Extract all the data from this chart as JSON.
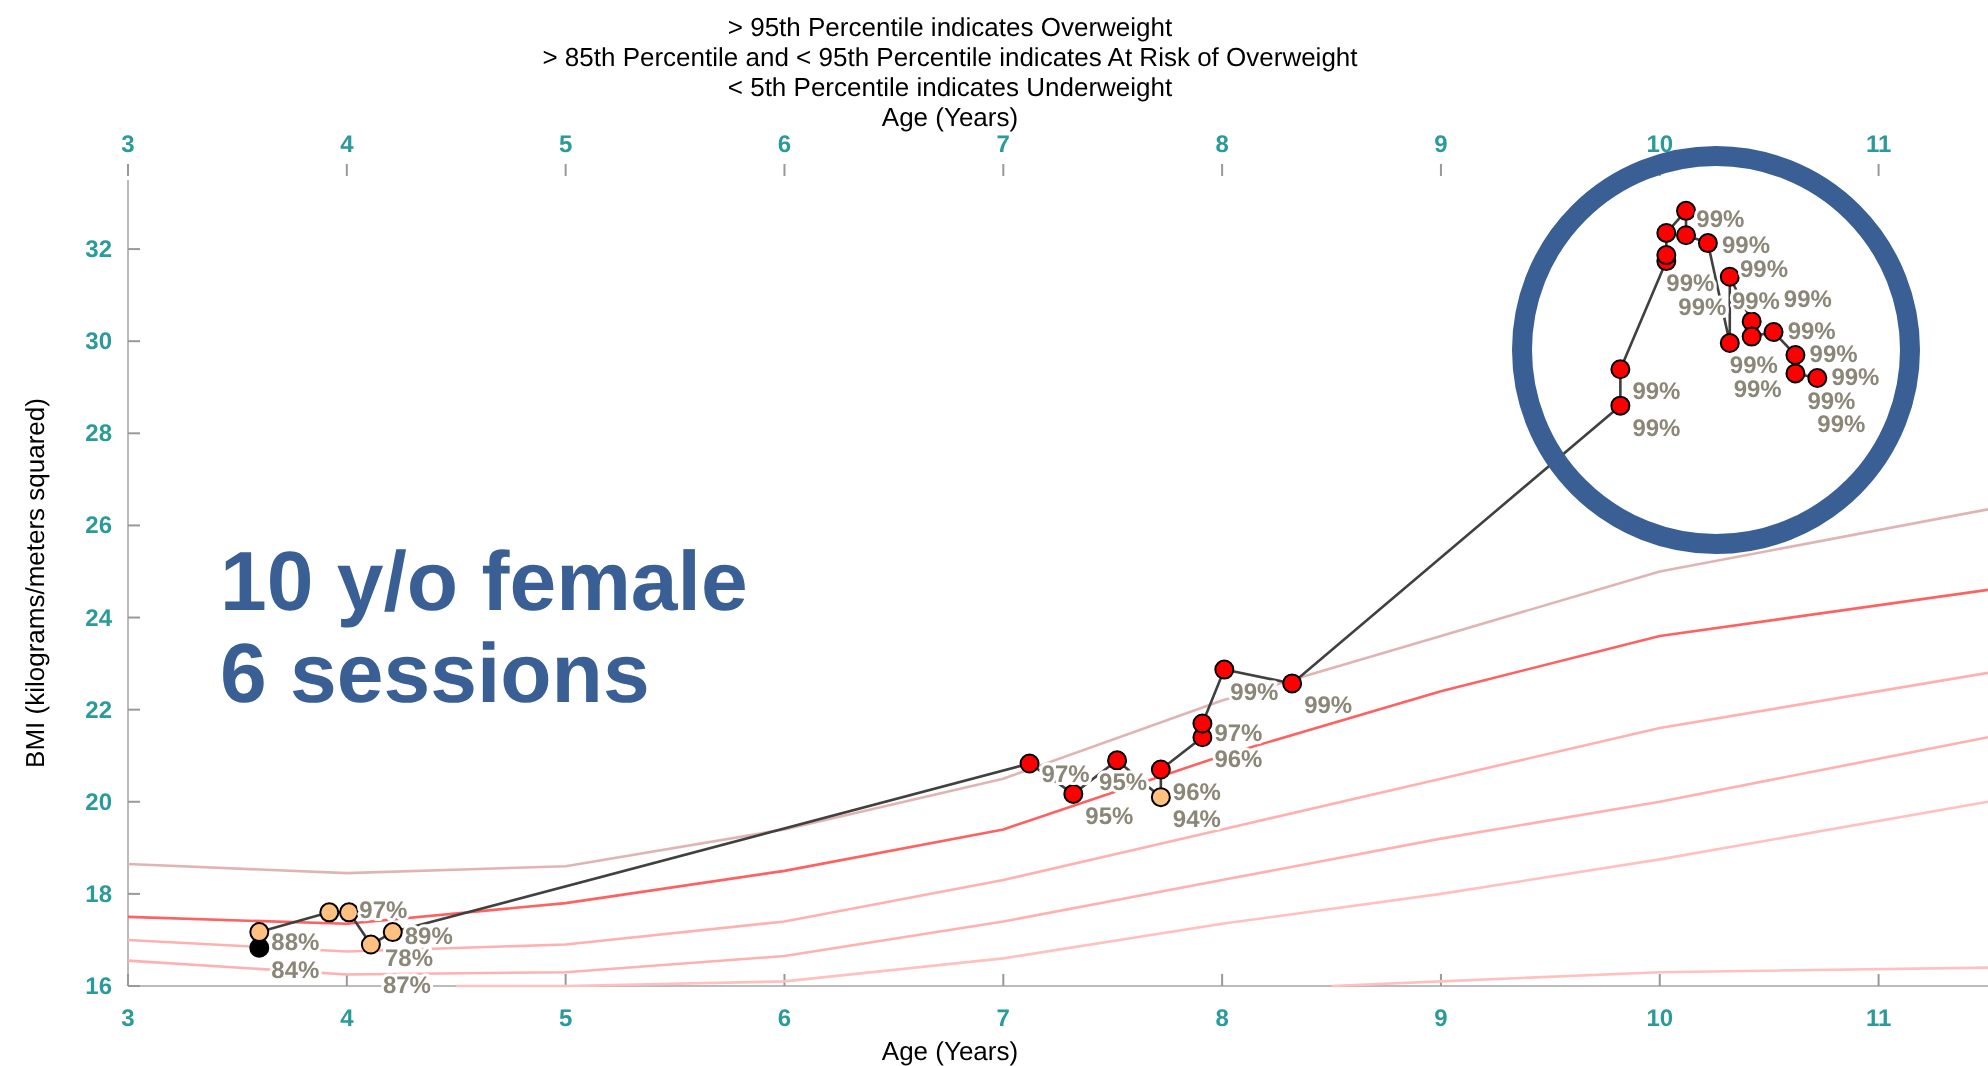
{
  "chart_data": {
    "type": "line",
    "title": "> 95th Percentile indicates Overweight\n> 85th Percentile and < 95th Percentile indicates At Risk of Overweight\n< 5th Percentile indicates Underweight",
    "xlabel": "Age (Years)",
    "x2label": "Age (Years)",
    "ylabel": "BMI (kilograms/meters squared)",
    "annotations": [
      "10 y/o female\n6 sessions",
      {
        "text": "84%",
        "x": 3.6,
        "y": 16.83
      },
      {
        "text": "88%",
        "x": 3.6,
        "y": 17.17
      },
      {
        "text": "97%",
        "x": 3.92,
        "y": 17.6
      },
      {
        "text": "78%",
        "x": 4.01,
        "y": 17.6
      },
      {
        "text": "87%",
        "x": 4.11,
        "y": 16.9
      },
      {
        "text": "89%",
        "x": 4.21,
        "y": 17.17
      },
      {
        "text": "97%",
        "x": 7.12,
        "y": 20.83
      },
      {
        "text": "95%",
        "x": 7.32,
        "y": 20.17
      },
      {
        "text": "95%",
        "x": 7.52,
        "y": 20.9
      },
      {
        "text": "94%",
        "x": 7.72,
        "y": 20.1
      },
      {
        "text": "96%",
        "x": 7.72,
        "y": 20.7
      },
      {
        "text": "96%",
        "x": 7.91,
        "y": 21.4
      },
      {
        "text": "97%",
        "x": 7.91,
        "y": 21.7
      },
      {
        "text": "99%",
        "x": 8.01,
        "y": 22.87
      },
      {
        "text": "99%",
        "x": 8.32,
        "y": 22.57
      },
      {
        "text": "99%",
        "x": 9.82,
        "y": 28.6
      },
      {
        "text": "99%",
        "x": 9.82,
        "y": 29.39
      },
      {
        "text": "99%",
        "x": 10.03,
        "y": 31.74
      },
      {
        "text": "99%",
        "x": 10.03,
        "y": 31.87
      },
      {
        "text": "99%",
        "x": 10.03,
        "y": 32.35
      },
      {
        "text": "99%",
        "x": 10.12,
        "y": 32.83
      },
      {
        "text": "99%",
        "x": 10.12,
        "y": 32.3
      },
      {
        "text": "99%",
        "x": 10.22,
        "y": 32.13
      },
      {
        "text": "99%",
        "x": 10.32,
        "y": 29.96
      },
      {
        "text": "99%",
        "x": 10.32,
        "y": 31.4
      },
      {
        "text": "99%",
        "x": 10.42,
        "y": 30.43
      },
      {
        "text": "99%",
        "x": 10.42,
        "y": 30.1
      },
      {
        "text": "99%",
        "x": 10.52,
        "y": 30.2
      },
      {
        "text": "99%",
        "x": 10.62,
        "y": 29.7
      },
      {
        "text": "99%",
        "x": 10.62,
        "y": 29.3
      },
      {
        "text": "99%",
        "x": 10.72,
        "y": 29.2
      }
    ],
    "xlim": [
      3,
      11.5
    ],
    "xticks": [
      3,
      4,
      5,
      6,
      7,
      8,
      9,
      10,
      11
    ],
    "x2lim": [
      3,
      11.5
    ],
    "x2ticks": [
      3,
      4,
      5,
      6,
      7,
      8,
      9,
      10,
      11
    ],
    "ylim": [
      16,
      33.5
    ],
    "yticks": [
      16,
      18,
      20,
      22,
      24,
      26,
      28,
      30,
      32
    ],
    "grid": false,
    "marker": "circle",
    "series": [
      {
        "color": "#e0b4b4",
        "marker": "none",
        "x": [
          3,
          4,
          5,
          6,
          7,
          8,
          9,
          10,
          11.5
        ],
        "values": [
          18.65,
          18.45,
          18.6,
          19.4,
          20.5,
          22.2,
          23.6,
          25.0,
          26.35
        ]
      },
      {
        "color": "#ff6060",
        "marker": "none",
        "x": [
          3,
          4,
          5,
          6,
          7,
          8,
          9,
          10,
          11.5
        ],
        "values": [
          17.5,
          17.35,
          17.8,
          18.5,
          19.4,
          21.0,
          22.4,
          23.6,
          24.6
        ]
      },
      {
        "color": "#ffb0b0",
        "marker": "none",
        "x": [
          3,
          4,
          5,
          6,
          7,
          8,
          9,
          10,
          11.5
        ],
        "values": [
          17.0,
          16.75,
          16.9,
          17.4,
          18.3,
          19.4,
          20.5,
          21.6,
          22.8
        ]
      },
      {
        "color": "#ffb0b0",
        "marker": "none",
        "x": [
          3,
          4,
          5,
          6,
          7,
          8,
          9,
          10,
          11.5
        ],
        "values": [
          16.55,
          16.25,
          16.3,
          16.65,
          17.4,
          18.3,
          19.2,
          20.0,
          21.4
        ]
      },
      {
        "color": "#ffc0c0",
        "marker": "none",
        "x": [
          4.5,
          5,
          6,
          7,
          8,
          9,
          10,
          11.5
        ],
        "values": [
          16.0,
          16.0,
          16.1,
          16.6,
          17.35,
          18.0,
          18.75,
          20.0
        ]
      },
      {
        "color": "#ffc0c0",
        "marker": "none",
        "x": [
          8.5,
          9,
          10,
          11.5
        ],
        "values": [
          16.0,
          16.1,
          16.3,
          16.4
        ]
      },
      {
        "color": "#404040",
        "x": [
          3.6,
          3.6,
          3.92,
          4.01,
          4.11,
          4.21,
          7.12,
          7.32,
          7.52,
          7.72,
          7.72,
          7.91,
          7.91,
          8.01,
          8.32,
          9.82,
          9.82,
          10.03,
          10.03,
          10.03,
          10.12,
          10.12,
          10.22,
          10.32,
          10.32,
          10.42,
          10.42,
          10.52,
          10.62,
          10.62,
          10.72
        ],
        "values": [
          16.83,
          17.17,
          17.6,
          17.6,
          16.9,
          17.17,
          20.83,
          20.17,
          20.9,
          20.1,
          20.7,
          21.4,
          21.7,
          22.87,
          22.57,
          28.6,
          29.39,
          31.74,
          31.87,
          32.35,
          32.83,
          32.3,
          32.13,
          29.96,
          31.4,
          30.43,
          30.1,
          30.2,
          29.7,
          29.3,
          29.2
        ],
        "colors": [
          "#000000",
          "#ffc080",
          "#ffc080",
          "#ffc080",
          "#ffc080",
          "#ffc080",
          "#ff0000",
          "#ff0000",
          "#ff0000",
          "#ffc080",
          "#ff0000",
          "#ff0000",
          "#ff0000",
          "#ff0000",
          "#ff0000",
          "#ff0000",
          "#ff0000",
          "#ff0000",
          "#ff0000",
          "#ff0000",
          "#ff0000",
          "#ff0000",
          "#ff0000",
          "#ff0000",
          "#ff0000",
          "#ff0000",
          "#ff0000",
          "#ff0000",
          "#ff0000",
          "#ff0000",
          "#ff0000"
        ]
      }
    ]
  }
}
